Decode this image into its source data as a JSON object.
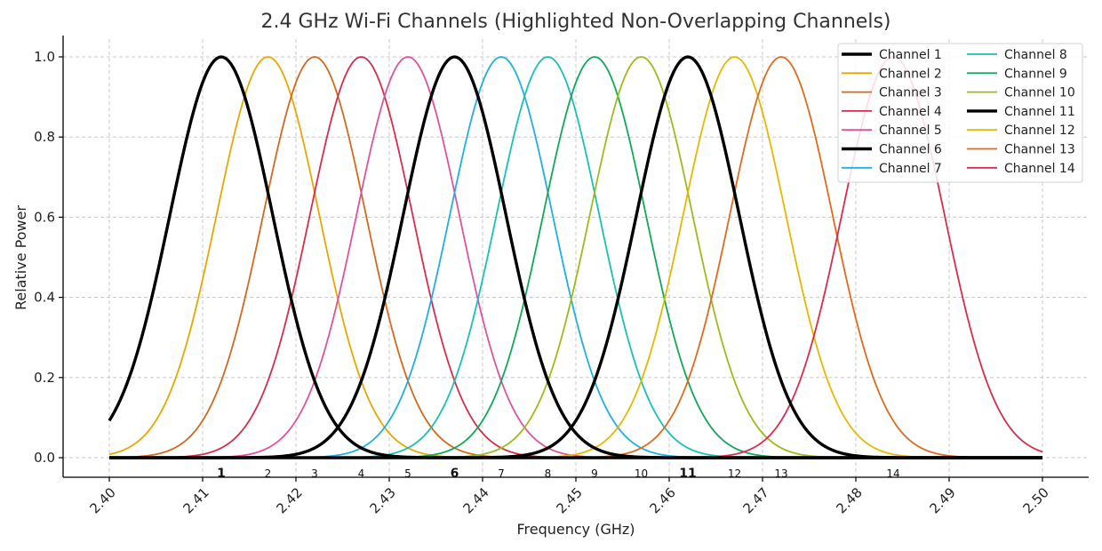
{
  "chart_data": {
    "type": "line",
    "title": "2.4 GHz Wi-Fi Channels (Highlighted Non-Overlapping Channels)",
    "xlabel": "Frequency (GHz)",
    "ylabel": "Relative Power",
    "xlim": [
      2.4,
      2.5
    ],
    "ylim": [
      0.0,
      1.0
    ],
    "x_ticks": [
      "2.40",
      "2.41",
      "2.42",
      "2.43",
      "2.44",
      "2.45",
      "2.46",
      "2.47",
      "2.48",
      "2.49",
      "2.50"
    ],
    "x_tick_values": [
      2.4,
      2.41,
      2.42,
      2.43,
      2.44,
      2.45,
      2.46,
      2.47,
      2.48,
      2.49,
      2.5
    ],
    "y_ticks": [
      "0.0",
      "0.2",
      "0.4",
      "0.6",
      "0.8",
      "1.0"
    ],
    "y_tick_values": [
      0.0,
      0.2,
      0.4,
      0.6,
      0.8,
      1.0
    ],
    "grid": true,
    "legend_position": "top-right",
    "legend_columns": 2,
    "curve_shape": "gaussian",
    "curve_sigma_ghz": 0.0055,
    "highlighted_channels": [
      1,
      6,
      11
    ],
    "series": [
      {
        "name": "Channel 1",
        "channel": 1,
        "center": 2.412,
        "peak": 1.0,
        "color": "#000000",
        "highlighted": true
      },
      {
        "name": "Channel 2",
        "channel": 2,
        "center": 2.417,
        "peak": 1.0,
        "color": "#E6A800",
        "highlighted": false
      },
      {
        "name": "Channel 3",
        "channel": 3,
        "center": 2.422,
        "peak": 1.0,
        "color": "#D2691E",
        "highlighted": false
      },
      {
        "name": "Channel 4",
        "channel": 4,
        "center": 2.427,
        "peak": 1.0,
        "color": "#D62D4E",
        "highlighted": false
      },
      {
        "name": "Channel 5",
        "channel": 5,
        "center": 2.432,
        "peak": 1.0,
        "color": "#E0529C",
        "highlighted": false
      },
      {
        "name": "Channel 6",
        "channel": 6,
        "center": 2.437,
        "peak": 1.0,
        "color": "#000000",
        "highlighted": true
      },
      {
        "name": "Channel 7",
        "channel": 7,
        "center": 2.442,
        "peak": 1.0,
        "color": "#1FAFE0",
        "highlighted": false
      },
      {
        "name": "Channel 8",
        "channel": 8,
        "center": 2.447,
        "peak": 1.0,
        "color": "#17C1B5",
        "highlighted": false
      },
      {
        "name": "Channel 9",
        "channel": 9,
        "center": 2.452,
        "peak": 1.0,
        "color": "#10A85A",
        "highlighted": false
      },
      {
        "name": "Channel 10",
        "channel": 10,
        "center": 2.457,
        "peak": 1.0,
        "color": "#9CBB1C",
        "highlighted": false
      },
      {
        "name": "Channel 11",
        "channel": 11,
        "center": 2.462,
        "peak": 1.0,
        "color": "#000000",
        "highlighted": true
      },
      {
        "name": "Channel 12",
        "channel": 12,
        "center": 2.467,
        "peak": 1.0,
        "color": "#E6B800",
        "highlighted": false
      },
      {
        "name": "Channel 13",
        "channel": 13,
        "center": 2.472,
        "peak": 1.0,
        "color": "#E06A1E",
        "highlighted": false
      },
      {
        "name": "Channel 14",
        "channel": 14,
        "center": 2.484,
        "peak": 1.0,
        "color": "#D62D4E",
        "highlighted": false
      }
    ],
    "channel_labels": [
      "1",
      "2",
      "3",
      "4",
      "5",
      "6",
      "7",
      "8",
      "9",
      "10",
      "11",
      "12",
      "13",
      "14"
    ]
  }
}
